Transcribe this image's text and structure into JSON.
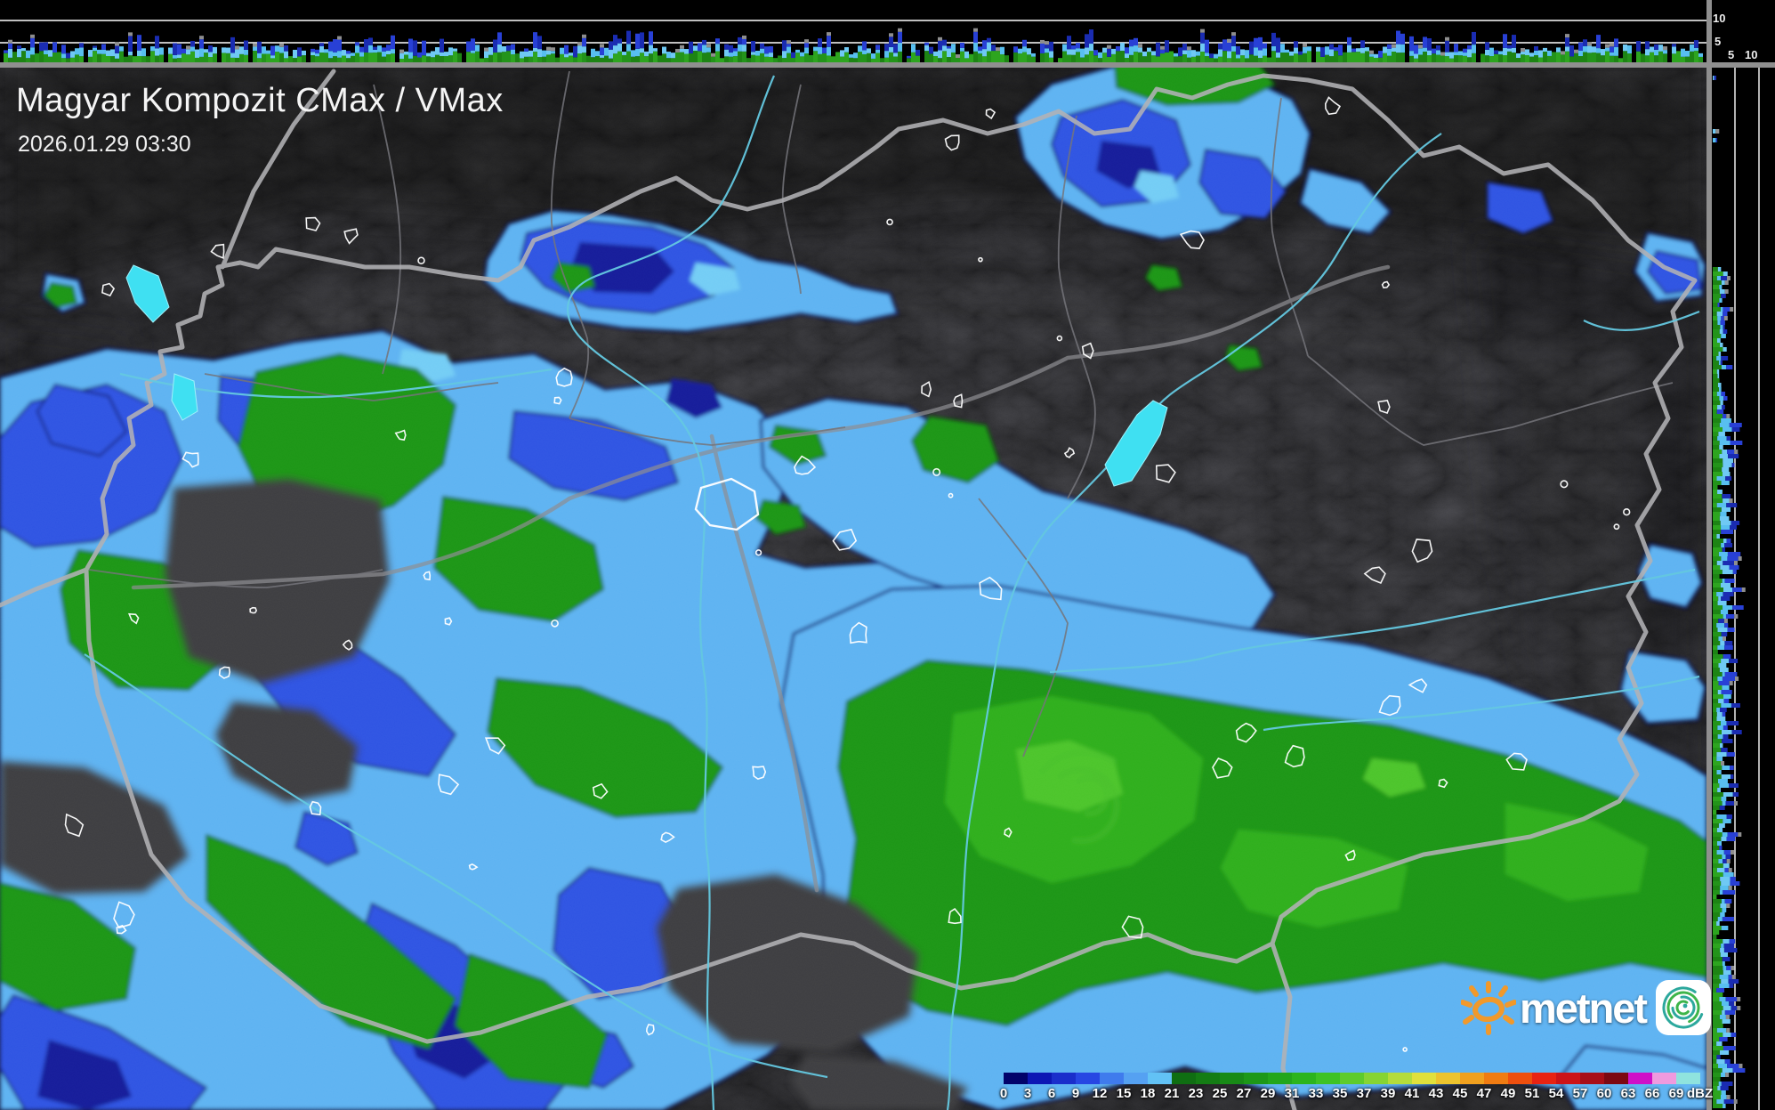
{
  "header": {
    "title": "Magyar Kompozit CMax / VMax",
    "datetime": "2026.01.29 03:30"
  },
  "scale": {
    "unit": "dBZ",
    "ticks": [
      {
        "v": "0",
        "c": "#02026a"
      },
      {
        "v": "3",
        "c": "#0d17b4"
      },
      {
        "v": "6",
        "c": "#1a2ecb"
      },
      {
        "v": "9",
        "c": "#2746e3"
      },
      {
        "v": "12",
        "c": "#3f7bed"
      },
      {
        "v": "15",
        "c": "#55a1f2"
      },
      {
        "v": "18",
        "c": "#62c2f5"
      },
      {
        "v": "21",
        "c": "#0f6e12"
      },
      {
        "v": "23",
        "c": "#147c14"
      },
      {
        "v": "25",
        "c": "#188a16"
      },
      {
        "v": "27",
        "c": "#1d9818"
      },
      {
        "v": "29",
        "c": "#23a61b"
      },
      {
        "v": "31",
        "c": "#2cb41d"
      },
      {
        "v": "33",
        "c": "#3ec224"
      },
      {
        "v": "35",
        "c": "#5ecb2b"
      },
      {
        "v": "37",
        "c": "#86d433"
      },
      {
        "v": "39",
        "c": "#b4dc3a"
      },
      {
        "v": "41",
        "c": "#e0e03c"
      },
      {
        "v": "43",
        "c": "#ecc32e"
      },
      {
        "v": "45",
        "c": "#f0a01f"
      },
      {
        "v": "47",
        "c": "#f07c12"
      },
      {
        "v": "49",
        "c": "#ee4f0e"
      },
      {
        "v": "51",
        "c": "#e82313"
      },
      {
        "v": "54",
        "c": "#cc1418"
      },
      {
        "v": "57",
        "c": "#a80e18"
      },
      {
        "v": "60",
        "c": "#7c0812"
      },
      {
        "v": "63",
        "c": "#cf10c8"
      },
      {
        "v": "66",
        "c": "#ef9ade"
      },
      {
        "v": "69",
        "c": "#8fe3de"
      }
    ]
  },
  "profile": {
    "top_axis_labels": {
      "km10": "10",
      "km5": "5"
    },
    "right_axis_labels": {
      "km5": "5",
      "km10": "10"
    },
    "colors": {
      "green1": "#23941a",
      "green2": "#1d8414",
      "green3": "#2da51f",
      "cyan1": "#58bff0",
      "cyan2": "#6fc9f4",
      "blue1": "#2840d6",
      "blue2": "#1a2cb2",
      "gray": "#8e8e8e"
    }
  },
  "logo": {
    "text": "metnet"
  },
  "map_colors": {
    "terrain": "#3a3a3e",
    "precip_light_blue": "#5db2f2",
    "precip_blue": "#2e52e2",
    "precip_dark_blue": "#141d99",
    "precip_green": "#1d9518",
    "lake_cyan": "#3fe0f2",
    "border_gray": "#b2b2b5",
    "river_cyan": "#64c8e0"
  }
}
